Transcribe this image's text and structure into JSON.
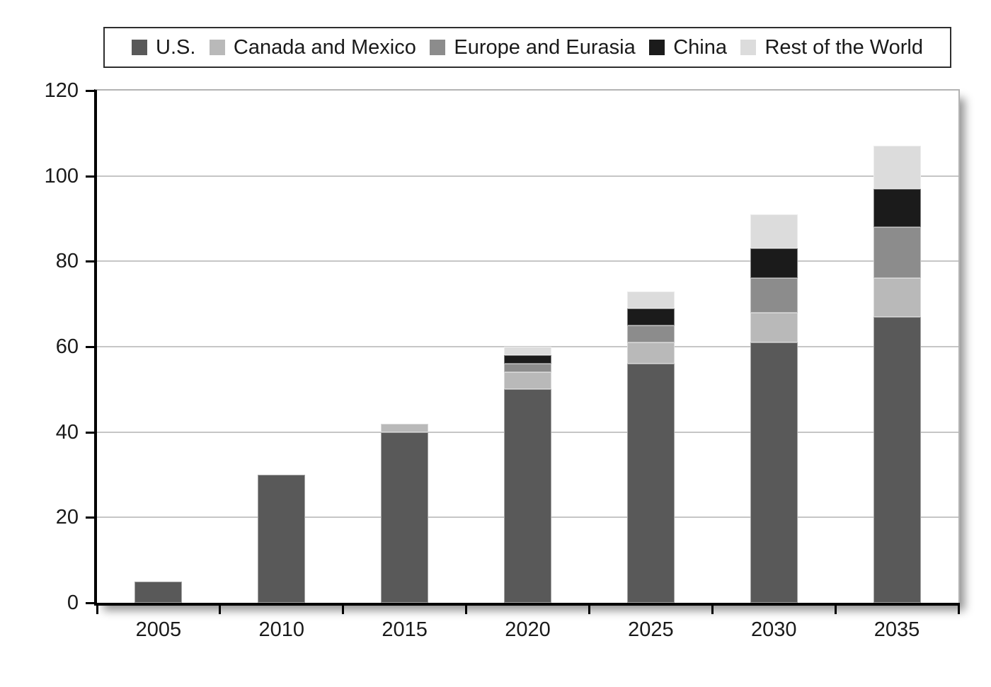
{
  "chart_data": {
    "type": "bar",
    "stacked": true,
    "title": "",
    "xlabel": "",
    "ylabel": "",
    "categories": [
      "2005",
      "2010",
      "2015",
      "2020",
      "2025",
      "2030",
      "2035"
    ],
    "series": [
      {
        "name": "U.S.",
        "color": "#595959",
        "values": [
          5,
          30,
          40,
          50,
          56,
          61,
          67
        ]
      },
      {
        "name": "Canada and Mexico",
        "color": "#b9b9b9",
        "values": [
          0,
          0,
          2,
          4,
          5,
          7,
          9
        ]
      },
      {
        "name": "Europe and Eurasia",
        "color": "#8c8c8c",
        "values": [
          0,
          0,
          0,
          2,
          4,
          8,
          12
        ]
      },
      {
        "name": "China",
        "color": "#1b1b1b",
        "values": [
          0,
          0,
          0,
          2,
          4,
          7,
          9
        ]
      },
      {
        "name": "Rest of the World",
        "color": "#dcdcdc",
        "values": [
          0,
          0,
          0,
          2,
          4,
          8,
          10
        ]
      }
    ],
    "totals": [
      5,
      30,
      42,
      60,
      73,
      91,
      107
    ],
    "ylim": [
      0,
      120
    ],
    "yticks": [
      0,
      20,
      40,
      60,
      80,
      100,
      120
    ],
    "grid": true,
    "legend_position": "top"
  },
  "colors": {
    "background": "#ffffff",
    "axis_line": "#000000",
    "gridline": "#c6c6c6",
    "plot_border": "#b3b3b3",
    "legend_border": "#2e2e2e",
    "text": "#1a1a1a"
  }
}
